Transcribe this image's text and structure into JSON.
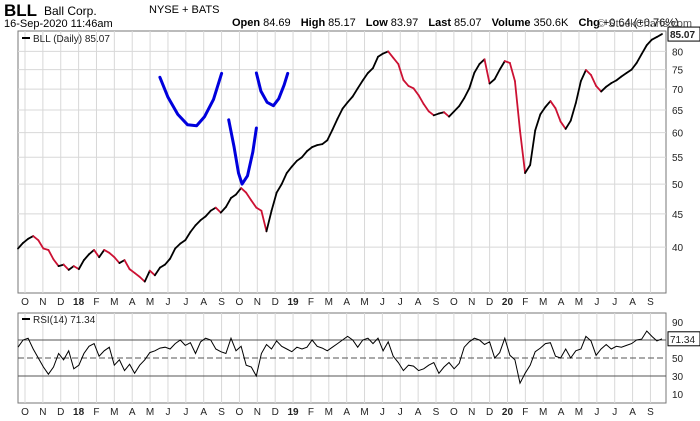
{
  "header": {
    "symbol": "BLL",
    "company": "Ball Corp.",
    "exchange": "NYSE + BATS",
    "datetime": "16-Sep-2020 11:46am",
    "open_label": "Open",
    "open": "84.69",
    "high_label": "High",
    "high": "85.17",
    "low_label": "Low",
    "low": "83.97",
    "last_label": "Last",
    "last": "85.07",
    "volume_label": "Volume",
    "volume": "350.6K",
    "chg_label": "Chg",
    "chg": "+0.64 (+0.76%)",
    "brand": "© StockCharts.com"
  },
  "colors": {
    "up": "#000000",
    "down": "#cc1133",
    "annotation": "#0000dd",
    "rsi": "#000000",
    "grid": "#d8d8d8"
  },
  "chart_data": [
    {
      "type": "line",
      "title": "",
      "legend": "BLL (Daily) 85.07",
      "last_value": "85.07",
      "xlabel": "",
      "ylabel": "",
      "x_tick_labels": [
        "O",
        "N",
        "D",
        "18",
        "F",
        "M",
        "A",
        "M",
        "J",
        "J",
        "A",
        "S",
        "O",
        "N",
        "D",
        "19",
        "F",
        "M",
        "A",
        "M",
        "J",
        "J",
        "A",
        "S",
        "O",
        "N",
        "D",
        "20",
        "F",
        "M",
        "A",
        "M",
        "J",
        "J",
        "A",
        "S"
      ],
      "year_labels": [
        "18",
        "19",
        "20"
      ],
      "y_ticks": [
        40,
        45,
        50,
        55,
        60,
        65,
        70,
        75,
        80
      ],
      "ylim": [
        34,
        86
      ],
      "y_scale": "log",
      "grid": true,
      "legend_position": "top-left",
      "series": [
        {
          "values": [
            39.8,
            40.6,
            41.2,
            41.6,
            41.0,
            39.8,
            39.6,
            38.3,
            37.4,
            37.6,
            36.9,
            37.4,
            37.0,
            38.2,
            39.0,
            39.6,
            38.6,
            39.6,
            39.2,
            38.6,
            37.8,
            38.2,
            37.0,
            36.5,
            36.0,
            35.4,
            36.8,
            36.2,
            37.2,
            37.6,
            38.4,
            39.8,
            40.5,
            41.0,
            42.2,
            43.2,
            44.0,
            44.6,
            45.5,
            46.0,
            45.2,
            46.1,
            47.6,
            48.2,
            49.3,
            48.5,
            47.2,
            46.0,
            45.5,
            42.3,
            45.5,
            48.5,
            50.0,
            52.0,
            53.2,
            54.3,
            55.0,
            56.2,
            57.0,
            57.4,
            57.6,
            58.4,
            60.6,
            63.0,
            65.3,
            66.8,
            68.2,
            70.2,
            72.2,
            74.1,
            75.4,
            78.5,
            79.4,
            80.0,
            78.2,
            76.5,
            72.3,
            70.8,
            70.2,
            68.5,
            66.4,
            64.7,
            63.8,
            64.2,
            64.5,
            63.5,
            64.7,
            65.9,
            67.8,
            70.2,
            74.2,
            76.5,
            77.8,
            71.4,
            72.5,
            75.0,
            77.3,
            76.8,
            72.0,
            60.4,
            52.0,
            53.5,
            60.5,
            64.0,
            65.7,
            67.1,
            65.4,
            62.4,
            60.8,
            62.6,
            66.6,
            72.0,
            74.9,
            73.6,
            70.8,
            69.4,
            70.6,
            71.5,
            72.2,
            73.2,
            74.1,
            75.0,
            76.8,
            79.3,
            81.8,
            83.4,
            84.2,
            85.07
          ]
        }
      ],
      "annotations": [
        {
          "type": "arc",
          "color": "#0000dd",
          "points": [
            [
              7.55,
              73.0
            ],
            [
              8.0,
              68.0
            ],
            [
              8.55,
              64.0
            ],
            [
              9.1,
              61.7
            ],
            [
              9.6,
              61.5
            ],
            [
              10.05,
              63.5
            ],
            [
              10.55,
              67.5
            ],
            [
              11.0,
              74.0
            ]
          ]
        },
        {
          "type": "arc",
          "color": "#0000dd",
          "points": [
            [
              11.4,
              62.8
            ],
            [
              11.7,
              57.0
            ],
            [
              11.95,
              52.0
            ],
            [
              12.15,
              50.0
            ],
            [
              12.45,
              51.5
            ],
            [
              12.75,
              56.0
            ],
            [
              12.95,
              61.0
            ]
          ]
        },
        {
          "type": "arc",
          "color": "#0000dd",
          "points": [
            [
              12.95,
              74.1
            ],
            [
              13.2,
              69.5
            ],
            [
              13.55,
              66.8
            ],
            [
              13.9,
              66.0
            ],
            [
              14.2,
              67.7
            ],
            [
              14.5,
              71.0
            ],
            [
              14.7,
              74.0
            ]
          ]
        }
      ]
    },
    {
      "type": "line",
      "title": "",
      "legend": "RSI(14) 71.34",
      "last_value": "71.34",
      "ylim": [
        0,
        100
      ],
      "y_ticks": [
        10,
        30,
        50,
        70,
        90
      ],
      "reference_lines": [
        30,
        50,
        70
      ],
      "series": [
        {
          "values": [
            62,
            70,
            72,
            60,
            50,
            40,
            32,
            40,
            55,
            48,
            58,
            38,
            42,
            55,
            63,
            66,
            52,
            58,
            62,
            42,
            48,
            36,
            43,
            33,
            42,
            48,
            56,
            58,
            61,
            62,
            60,
            66,
            70,
            64,
            67,
            55,
            68,
            72,
            70,
            60,
            57,
            55,
            72,
            58,
            63,
            42,
            40,
            30,
            55,
            65,
            60,
            69,
            63,
            60,
            57,
            62,
            60,
            62,
            70,
            63,
            61,
            58,
            62,
            66,
            70,
            74,
            70,
            62,
            70,
            72,
            66,
            72,
            58,
            68,
            52,
            45,
            36,
            42,
            41,
            36,
            38,
            42,
            45,
            33,
            40,
            45,
            38,
            44,
            62,
            68,
            72,
            70,
            65,
            68,
            50,
            56,
            72,
            53,
            48,
            22,
            33,
            42,
            57,
            61,
            66,
            67,
            52,
            50,
            60,
            50,
            58,
            60,
            74,
            69,
            53,
            60,
            65,
            60,
            63,
            62,
            64,
            66,
            70,
            71,
            80,
            74,
            69,
            71.34
          ]
        }
      ]
    }
  ]
}
